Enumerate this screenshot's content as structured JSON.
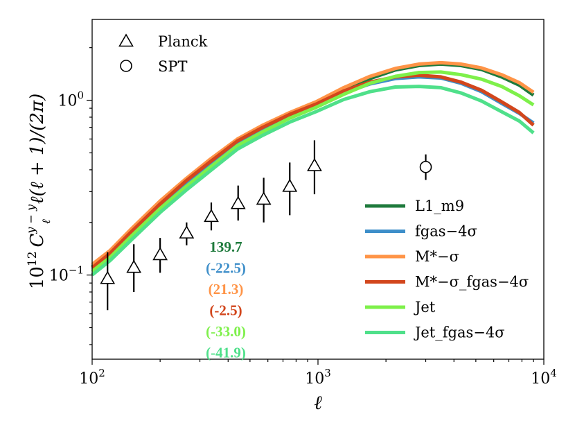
{
  "chart_data": {
    "type": "line",
    "xlabel": "ℓ",
    "ylabel_parts": {
      "base": "10",
      "exp": "12",
      "sym": "C",
      "sup": "y − y",
      "sub": "ℓ",
      "tail": "ℓ(ℓ + 1)/(2π)"
    },
    "xscale": "log",
    "yscale": "log",
    "xlim": [
      100,
      10000
    ],
    "ylim": [
      0.033,
      2.9
    ],
    "x_tick_labels": [
      {
        "base": "10",
        "exp": "2"
      },
      {
        "base": "10",
        "exp": "3"
      },
      {
        "base": "10",
        "exp": "4"
      }
    ],
    "y_tick_labels": [
      {
        "base": "10",
        "exp": "−1",
        "value": 0.1
      },
      {
        "base": "10",
        "exp": "0",
        "value": 1.0
      }
    ],
    "grid": false,
    "x": [
      100,
      120,
      150,
      200,
      260,
      330,
      440,
      570,
      750,
      980,
      1300,
      1700,
      2200,
      2800,
      3500,
      4300,
      5300,
      6500,
      7800,
      9000
    ],
    "series": [
      {
        "name": "L1_m9",
        "color": "#1e7a3c",
        "values": [
          0.112,
          0.135,
          0.18,
          0.255,
          0.34,
          0.435,
          0.58,
          0.7,
          0.83,
          0.96,
          1.15,
          1.33,
          1.49,
          1.58,
          1.61,
          1.58,
          1.5,
          1.36,
          1.22,
          1.07
        ]
      },
      {
        "name": "fgas−4σ",
        "color": "#3d8ec9",
        "values": [
          0.108,
          0.13,
          0.172,
          0.245,
          0.33,
          0.42,
          0.565,
          0.68,
          0.81,
          0.93,
          1.1,
          1.24,
          1.33,
          1.36,
          1.34,
          1.25,
          1.12,
          0.96,
          0.84,
          0.74
        ]
      },
      {
        "name": "M*−σ",
        "color": "#ff9447",
        "values": [
          0.115,
          0.138,
          0.185,
          0.265,
          0.355,
          0.455,
          0.6,
          0.72,
          0.85,
          0.98,
          1.18,
          1.37,
          1.52,
          1.61,
          1.64,
          1.61,
          1.53,
          1.4,
          1.26,
          1.11
        ]
      },
      {
        "name": "M*−σ_fgas−4σ",
        "color": "#d2461c",
        "values": [
          0.11,
          0.133,
          0.178,
          0.255,
          0.345,
          0.44,
          0.585,
          0.7,
          0.83,
          0.95,
          1.13,
          1.27,
          1.36,
          1.39,
          1.36,
          1.27,
          1.14,
          0.98,
          0.85,
          0.72
        ]
      },
      {
        "name": "Jet",
        "color": "#7ef04a",
        "values": [
          0.105,
          0.126,
          0.168,
          0.24,
          0.32,
          0.41,
          0.55,
          0.66,
          0.79,
          0.91,
          1.08,
          1.25,
          1.37,
          1.44,
          1.45,
          1.4,
          1.32,
          1.2,
          1.06,
          0.94
        ]
      },
      {
        "name": "Jet_fgas−4σ",
        "color": "#4fe08a",
        "values": [
          0.1,
          0.121,
          0.16,
          0.228,
          0.305,
          0.39,
          0.525,
          0.63,
          0.75,
          0.86,
          1.01,
          1.12,
          1.19,
          1.2,
          1.18,
          1.1,
          0.99,
          0.86,
          0.76,
          0.65
        ]
      }
    ],
    "observations": [
      {
        "name": "Planck",
        "marker": "triangle",
        "points": [
          {
            "x": 117,
            "y": 0.095,
            "ylo": 0.063,
            "yhi": 0.135
          },
          {
            "x": 153,
            "y": 0.11,
            "ylo": 0.08,
            "yhi": 0.15
          },
          {
            "x": 200,
            "y": 0.13,
            "ylo": 0.103,
            "yhi": 0.163
          },
          {
            "x": 262,
            "y": 0.173,
            "ylo": 0.148,
            "yhi": 0.2
          },
          {
            "x": 337,
            "y": 0.215,
            "ylo": 0.18,
            "yhi": 0.26
          },
          {
            "x": 443,
            "y": 0.255,
            "ylo": 0.205,
            "yhi": 0.325
          },
          {
            "x": 575,
            "y": 0.27,
            "ylo": 0.2,
            "yhi": 0.36
          },
          {
            "x": 750,
            "y": 0.32,
            "ylo": 0.22,
            "yhi": 0.44
          },
          {
            "x": 965,
            "y": 0.42,
            "ylo": 0.29,
            "yhi": 0.59
          }
        ]
      },
      {
        "name": "SPT",
        "marker": "circle",
        "points": [
          {
            "x": 3000,
            "y": 0.415,
            "ylo": 0.35,
            "yhi": 0.49
          }
        ]
      }
    ],
    "marker_legend": [
      {
        "label": "Planck",
        "marker": "triangle"
      },
      {
        "label": "SPT",
        "marker": "circle"
      }
    ],
    "line_legend_placement": "lower-right",
    "marker_legend_placement": "top-left",
    "annotations": [
      {
        "text": "139.7",
        "color": "#1e7a3c"
      },
      {
        "text": "(-22.5)",
        "color": "#3d8ec9"
      },
      {
        "text": "(21.3)",
        "color": "#ff9447"
      },
      {
        "text": "(-2.5)",
        "color": "#d2461c"
      },
      {
        "text": "(-33.0)",
        "color": "#7ef04a"
      },
      {
        "text": "(-41.9)",
        "color": "#4fe08a"
      }
    ]
  }
}
